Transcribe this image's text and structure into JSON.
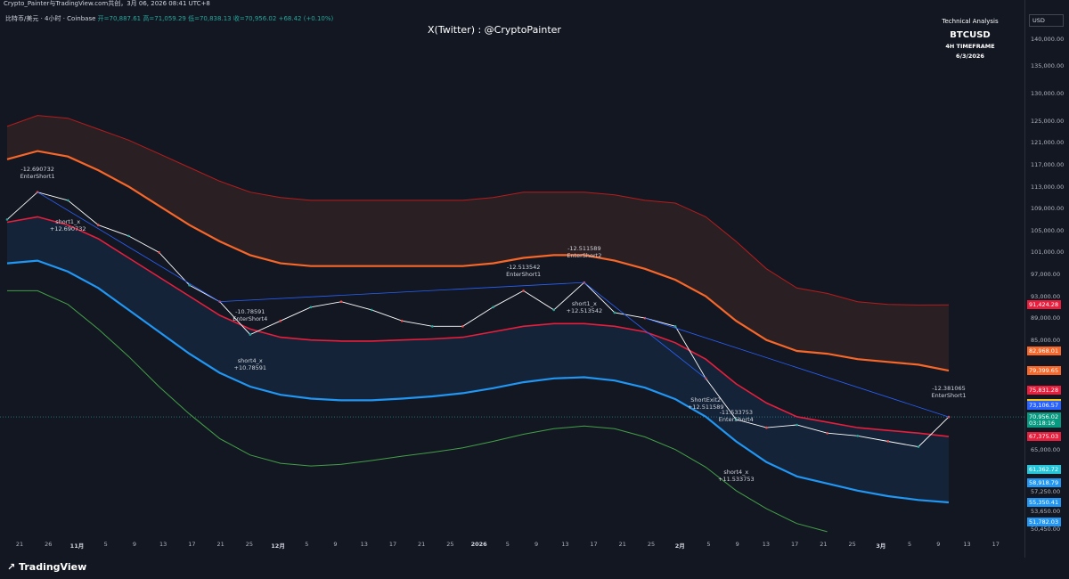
{
  "header": {
    "top_left": "Crypto_Painter与TradingView.com共创，3月 06, 2026 08:41 UTC+8",
    "legend_prefix": "比特币/美元 · 4小时 · Coinbase",
    "legend_open": "开=70,887.61",
    "legend_high": "高=71,059.29",
    "legend_low": "低=70,838.13",
    "legend_close": "收=70,956.02",
    "legend_change": "+68.42 (+0.10%)"
  },
  "watermark": "X(Twitter) : @CryptoPainter",
  "info_box": {
    "line1": "Technical Analysis",
    "line2": "BTCUSD",
    "line3": "4H TIMEFRAME",
    "line4": "6/3/2026"
  },
  "axis": {
    "currency": "USD",
    "yticks": [
      "140,000.00",
      "135,000.00",
      "130,000.00",
      "125,000.00",
      "121,000.00",
      "117,000.00",
      "113,000.00",
      "109,000.00",
      "105,000.00",
      "101,000.00",
      "97,000.00",
      "93,000.00",
      "89,000.00",
      "85,000.00",
      "65,000.00",
      "57,250.00",
      "53,650.00",
      "50,450.00"
    ],
    "xticks": [
      "21",
      "26",
      "11月",
      "5",
      "9",
      "13",
      "17",
      "21",
      "25",
      "12月",
      "5",
      "9",
      "13",
      "17",
      "21",
      "25",
      "2026",
      "5",
      "9",
      "13",
      "17",
      "21",
      "25",
      "2月",
      "5",
      "9",
      "13",
      "17",
      "21",
      "25",
      "3月",
      "5",
      "9",
      "13",
      "17"
    ],
    "bold_xticks": [
      "11月",
      "12月",
      "2026",
      "2月",
      "3月"
    ]
  },
  "price_labels": [
    {
      "text": "91,424.28",
      "color": "#e91e3c"
    },
    {
      "text": "82,968.01",
      "color": "#f7672a"
    },
    {
      "text": "79,399.65",
      "color": "#f7672a"
    },
    {
      "text": "75,831.28",
      "color": "#e91e3c"
    },
    {
      "text": "73,387.34",
      "color": "#f5c518"
    },
    {
      "text": "73,106.57",
      "color": "#2962ff"
    },
    {
      "text": "70,956.02",
      "color": "#089981"
    },
    {
      "text": "03:18:16",
      "color": "#089981"
    },
    {
      "text": "67,375.03",
      "color": "#e91e3c"
    },
    {
      "text": "61,362.72",
      "color": "#26c6da"
    },
    {
      "text": "58,918.79",
      "color": "#2196f3"
    },
    {
      "text": "55,350.41",
      "color": "#2196f3"
    },
    {
      "text": "51,782.03",
      "color": "#2196f3"
    }
  ],
  "annotations": [
    {
      "text": "-12.690732\nEnterShort1",
      "id": "ann-entershort1-a"
    },
    {
      "text": "short1_x\n+12.690732",
      "id": "ann-short1x-a"
    },
    {
      "text": "-10.78591\nEnterShort4",
      "id": "ann-entershort4-a"
    },
    {
      "text": "short4_x\n+10.78591",
      "id": "ann-short4x-a"
    },
    {
      "text": "-12.513542\nEnterShort1",
      "id": "ann-entershort1-b"
    },
    {
      "text": "-12.511589\nEnterShort2",
      "id": "ann-entershort2"
    },
    {
      "text": "short1_x\n+12.513542",
      "id": "ann-short1x-b"
    },
    {
      "text": "ShortExit2\n+12.511589",
      "id": "ann-shortexit2"
    },
    {
      "text": "-11.533753\nEnterShort4",
      "id": "ann-entershort4-b"
    },
    {
      "text": "short4_x\n+11.533753",
      "id": "ann-short4x-b"
    },
    {
      "text": "-12.381065\nEnterShort1",
      "id": "ann-entershort1-c"
    }
  ],
  "footer": {
    "logo": "TradingView"
  },
  "chart_data": {
    "type": "line",
    "symbol": "BTCUSD",
    "timeframe": "4H",
    "x": [
      "10-21",
      "10-26",
      "11-01",
      "11-05",
      "11-09",
      "11-13",
      "11-17",
      "11-21",
      "11-25",
      "12-01",
      "12-05",
      "12-09",
      "12-13",
      "12-17",
      "12-21",
      "12-25",
      "01-01",
      "01-05",
      "01-09",
      "01-13",
      "01-17",
      "01-21",
      "01-25",
      "02-01",
      "02-05",
      "02-09",
      "02-13",
      "02-17",
      "02-21",
      "02-25",
      "03-01",
      "03-05"
    ],
    "series": [
      {
        "values": [
          107000,
          112000,
          110500,
          106000,
          104000,
          101000,
          95000,
          92000,
          86000,
          88500,
          91000,
          92000,
          90500,
          88500,
          87500,
          87500,
          91000,
          94000,
          90500,
          95500,
          90000,
          89000,
          87500,
          78000,
          70500,
          69000,
          69500,
          68000,
          67500,
          66500,
          65500,
          70956
        ]
      },
      {
        "values": [
          124000,
          126000,
          125500,
          123500,
          121500,
          119000,
          116500,
          114000,
          112000,
          111000,
          110500,
          110500,
          110500,
          110500,
          110500,
          110500,
          111000,
          112000,
          112000,
          112000,
          111500,
          110500,
          110000,
          107500,
          103000,
          98000,
          94500,
          93500,
          92000,
          91500,
          91400,
          91424
        ]
      },
      {
        "values": [
          118000,
          119500,
          118500,
          116000,
          113000,
          109500,
          106000,
          103000,
          100500,
          99000,
          98500,
          98500,
          98500,
          98500,
          98500,
          98500,
          99000,
          100000,
          100500,
          100500,
          99500,
          98000,
          96000,
          93000,
          88500,
          85000,
          83000,
          82500,
          81500,
          81000,
          80500,
          79400
        ]
      },
      {
        "values": [
          106500,
          107500,
          106000,
          103500,
          100000,
          96500,
          93000,
          89500,
          87000,
          85500,
          85000,
          84800,
          84800,
          85000,
          85200,
          85500,
          86500,
          87500,
          88000,
          88000,
          87500,
          86500,
          84500,
          81500,
          77000,
          73500,
          71000,
          70000,
          69000,
          68500,
          68000,
          67375
        ]
      },
      {
        "values": [
          99000,
          99500,
          97500,
          94500,
          90500,
          86500,
          82500,
          79000,
          76500,
          75000,
          74300,
          74000,
          74000,
          74300,
          74700,
          75300,
          76200,
          77300,
          78000,
          78200,
          77600,
          76300,
          74200,
          71000,
          66500,
          62700,
          60100,
          58800,
          57500,
          56500,
          55800,
          55350
        ]
      },
      {
        "values": [
          94000,
          94000,
          91500,
          87000,
          82000,
          76500,
          71500,
          67000,
          64000,
          62500,
          62000,
          62300,
          63000,
          63800,
          64500,
          65300,
          66500,
          67800,
          68800,
          69300,
          68800,
          67300,
          65000,
          61800,
          57500,
          54200,
          51500,
          50000,
          null,
          null,
          null,
          null
        ]
      }
    ],
    "ylim": [
      49500,
      143500
    ]
  }
}
